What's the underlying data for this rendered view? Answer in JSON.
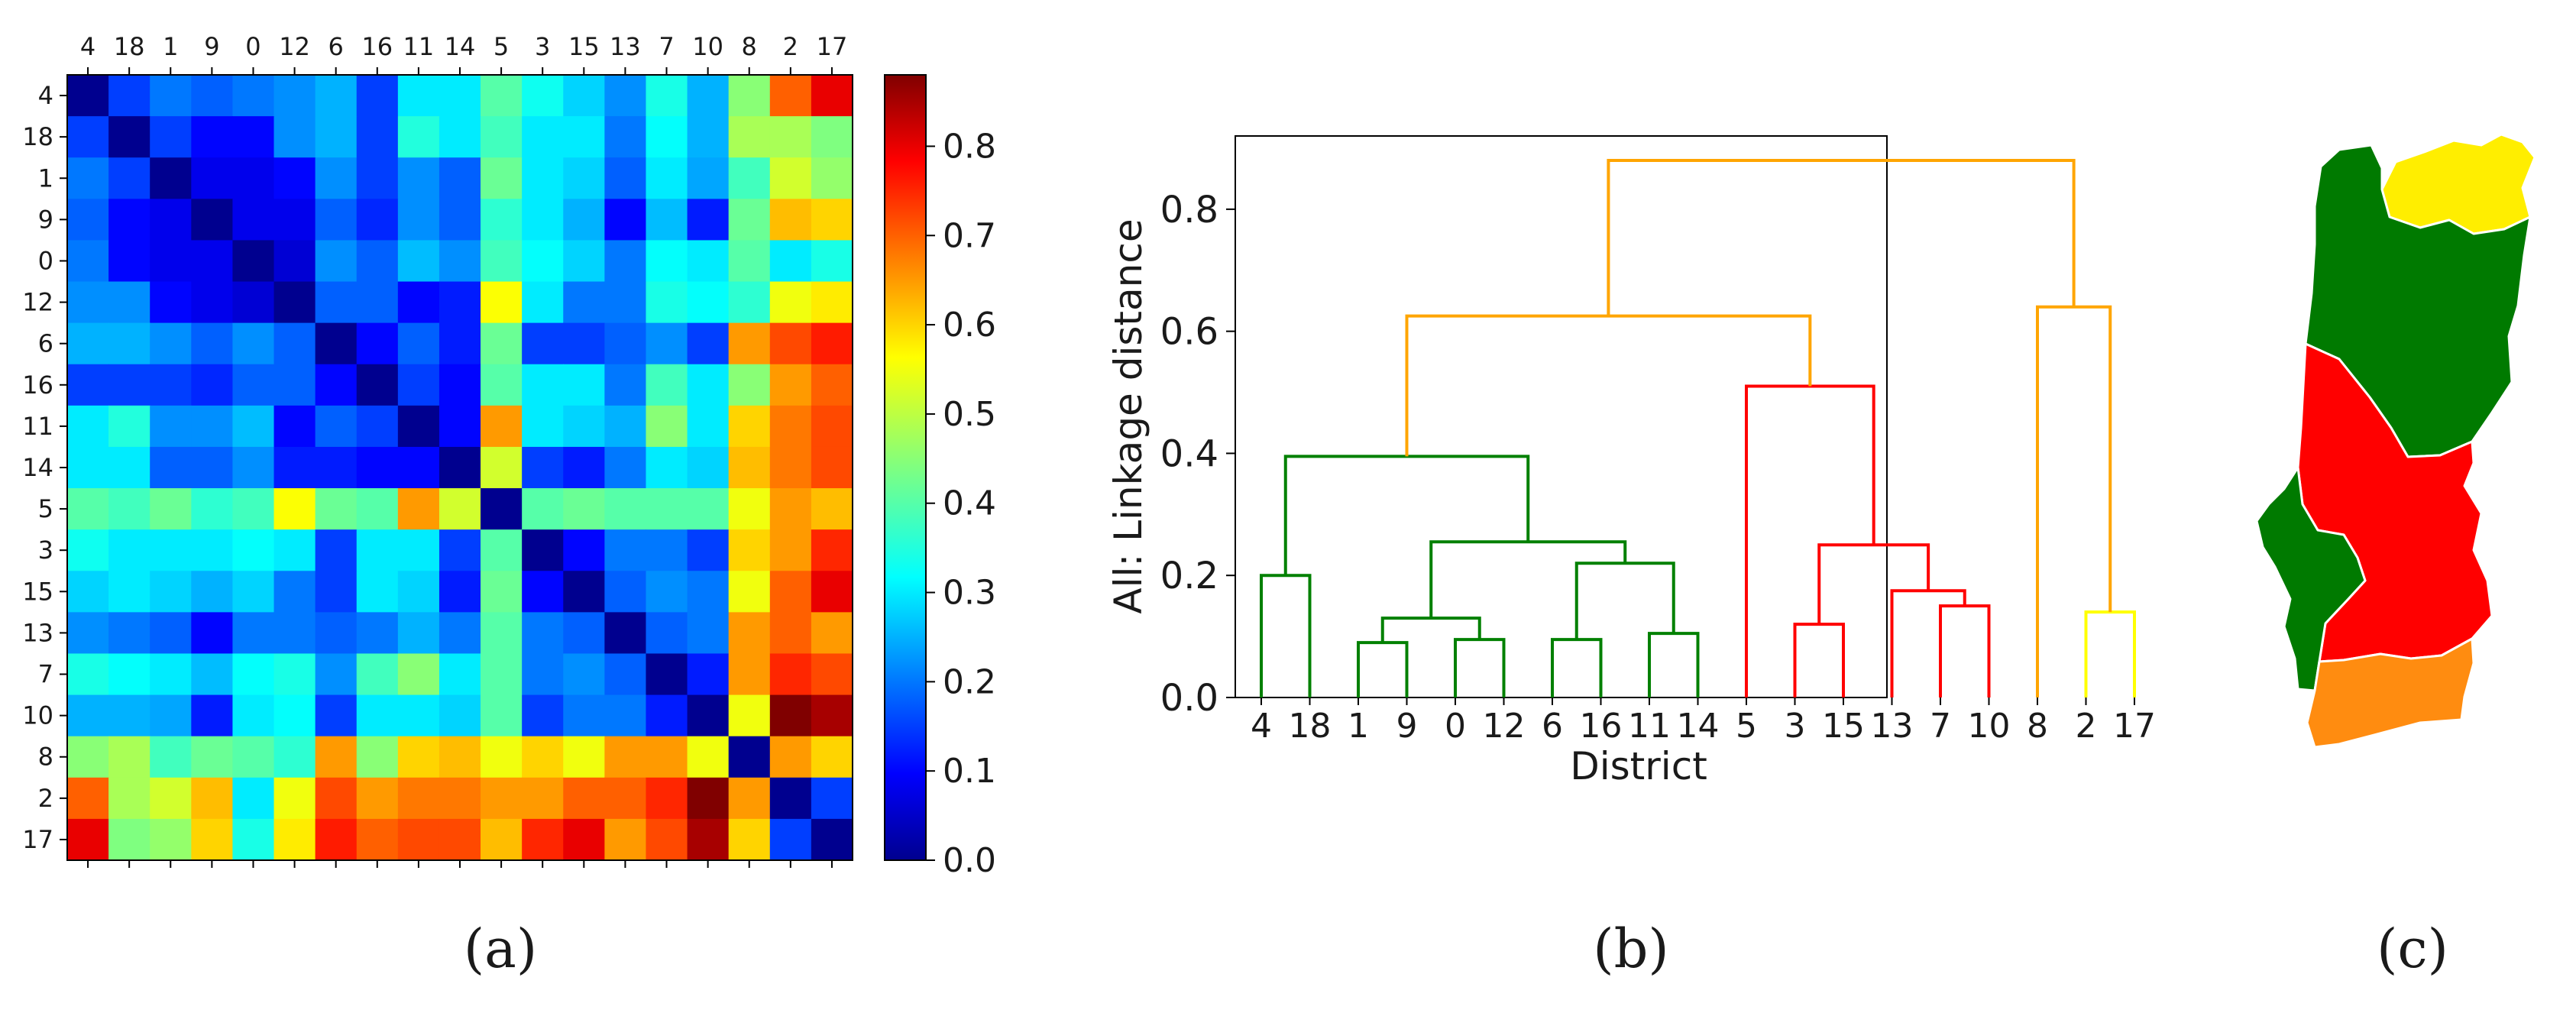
{
  "chart_data": [
    {
      "type": "heatmap",
      "panel_label": "(a)",
      "title": "",
      "row_labels": [
        "4",
        "18",
        "1",
        "9",
        "0",
        "12",
        "6",
        "16",
        "11",
        "14",
        "5",
        "3",
        "15",
        "13",
        "7",
        "10",
        "8",
        "2",
        "17"
      ],
      "col_labels": [
        "4",
        "18",
        "1",
        "9",
        "0",
        "12",
        "6",
        "16",
        "11",
        "14",
        "5",
        "3",
        "15",
        "13",
        "7",
        "10",
        "8",
        "2",
        "17"
      ],
      "values": [
        [
          0.0,
          0.15,
          0.2,
          0.18,
          0.2,
          0.22,
          0.25,
          0.15,
          0.3,
          0.3,
          0.4,
          0.33,
          0.28,
          0.22,
          0.34,
          0.25,
          0.45,
          0.7,
          0.8
        ],
        [
          0.15,
          0.0,
          0.15,
          0.1,
          0.1,
          0.22,
          0.25,
          0.15,
          0.35,
          0.3,
          0.38,
          0.3,
          0.3,
          0.2,
          0.32,
          0.25,
          0.48,
          0.48,
          0.44
        ],
        [
          0.2,
          0.15,
          0.0,
          0.08,
          0.08,
          0.1,
          0.22,
          0.15,
          0.22,
          0.18,
          0.42,
          0.3,
          0.28,
          0.18,
          0.3,
          0.24,
          0.38,
          0.52,
          0.46
        ],
        [
          0.18,
          0.1,
          0.08,
          0.0,
          0.08,
          0.08,
          0.18,
          0.13,
          0.22,
          0.18,
          0.36,
          0.3,
          0.25,
          0.1,
          0.26,
          0.12,
          0.42,
          0.62,
          0.6
        ],
        [
          0.2,
          0.1,
          0.08,
          0.08,
          0.0,
          0.06,
          0.22,
          0.18,
          0.26,
          0.22,
          0.38,
          0.32,
          0.28,
          0.2,
          0.32,
          0.3,
          0.4,
          0.3,
          0.34
        ],
        [
          0.22,
          0.22,
          0.1,
          0.08,
          0.06,
          0.0,
          0.18,
          0.18,
          0.1,
          0.12,
          0.56,
          0.3,
          0.2,
          0.2,
          0.34,
          0.32,
          0.36,
          0.55,
          0.58
        ],
        [
          0.25,
          0.25,
          0.22,
          0.18,
          0.22,
          0.18,
          0.0,
          0.1,
          0.18,
          0.12,
          0.42,
          0.15,
          0.15,
          0.18,
          0.22,
          0.15,
          0.65,
          0.72,
          0.76
        ],
        [
          0.15,
          0.15,
          0.15,
          0.13,
          0.18,
          0.18,
          0.1,
          0.0,
          0.15,
          0.1,
          0.4,
          0.3,
          0.3,
          0.2,
          0.38,
          0.3,
          0.45,
          0.65,
          0.7
        ],
        [
          0.3,
          0.35,
          0.22,
          0.22,
          0.26,
          0.1,
          0.18,
          0.15,
          0.0,
          0.1,
          0.65,
          0.3,
          0.28,
          0.25,
          0.45,
          0.3,
          0.6,
          0.68,
          0.72
        ],
        [
          0.3,
          0.3,
          0.18,
          0.18,
          0.22,
          0.12,
          0.12,
          0.1,
          0.1,
          0.0,
          0.52,
          0.15,
          0.12,
          0.2,
          0.3,
          0.28,
          0.62,
          0.68,
          0.72
        ],
        [
          0.4,
          0.38,
          0.42,
          0.36,
          0.38,
          0.56,
          0.42,
          0.4,
          0.65,
          0.52,
          0.0,
          0.4,
          0.42,
          0.4,
          0.4,
          0.4,
          0.55,
          0.65,
          0.62
        ],
        [
          0.33,
          0.3,
          0.3,
          0.3,
          0.32,
          0.3,
          0.15,
          0.3,
          0.3,
          0.15,
          0.4,
          0.0,
          0.1,
          0.2,
          0.2,
          0.15,
          0.6,
          0.65,
          0.75
        ],
        [
          0.28,
          0.3,
          0.28,
          0.25,
          0.28,
          0.2,
          0.15,
          0.3,
          0.28,
          0.12,
          0.42,
          0.1,
          0.0,
          0.18,
          0.22,
          0.2,
          0.55,
          0.7,
          0.8
        ],
        [
          0.22,
          0.2,
          0.18,
          0.1,
          0.2,
          0.2,
          0.18,
          0.2,
          0.25,
          0.2,
          0.4,
          0.2,
          0.18,
          0.0,
          0.18,
          0.2,
          0.65,
          0.7,
          0.65
        ],
        [
          0.34,
          0.32,
          0.3,
          0.26,
          0.32,
          0.34,
          0.22,
          0.38,
          0.45,
          0.3,
          0.4,
          0.2,
          0.22,
          0.18,
          0.0,
          0.12,
          0.65,
          0.75,
          0.72
        ],
        [
          0.25,
          0.25,
          0.24,
          0.12,
          0.3,
          0.32,
          0.15,
          0.3,
          0.3,
          0.28,
          0.4,
          0.15,
          0.2,
          0.2,
          0.12,
          0.0,
          0.55,
          0.88,
          0.85
        ],
        [
          0.45,
          0.48,
          0.38,
          0.42,
          0.4,
          0.36,
          0.65,
          0.45,
          0.6,
          0.62,
          0.55,
          0.6,
          0.55,
          0.65,
          0.65,
          0.55,
          0.0,
          0.65,
          0.6
        ],
        [
          0.7,
          0.48,
          0.52,
          0.62,
          0.3,
          0.55,
          0.72,
          0.65,
          0.68,
          0.68,
          0.65,
          0.65,
          0.7,
          0.7,
          0.75,
          0.88,
          0.65,
          0.0,
          0.15
        ],
        [
          0.8,
          0.44,
          0.46,
          0.6,
          0.34,
          0.58,
          0.76,
          0.7,
          0.72,
          0.72,
          0.62,
          0.75,
          0.8,
          0.65,
          0.72,
          0.85,
          0.6,
          0.15,
          0.0
        ]
      ],
      "colormap": "jet",
      "vmin": 0.0,
      "vmax": 0.88,
      "colorbar_ticks": [
        0.0,
        0.1,
        0.2,
        0.3,
        0.4,
        0.5,
        0.6,
        0.7,
        0.8
      ],
      "colorbar_tick_labels": [
        "0.0",
        "0.1",
        "0.2",
        "0.3",
        "0.4",
        "0.5",
        "0.6",
        "0.7",
        "0.8"
      ]
    },
    {
      "type": "dendrogram",
      "panel_label": "(b)",
      "title": "",
      "xlabel": "District",
      "ylabel": "All: Linkage distance",
      "ylim": [
        0.0,
        0.92
      ],
      "yticks": [
        0.0,
        0.2,
        0.4,
        0.6,
        0.8
      ],
      "ytick_labels": [
        "0.0",
        "0.2",
        "0.4",
        "0.6",
        "0.8"
      ],
      "leaf_order": [
        "4",
        "18",
        "1",
        "9",
        "0",
        "12",
        "6",
        "16",
        "11",
        "14",
        "5",
        "3",
        "15",
        "13",
        "7",
        "10",
        "8",
        "2",
        "17"
      ],
      "merges": [
        {
          "pos_left": 0,
          "pos_right": 1,
          "h_left": 0,
          "h_right": 0,
          "height": 0.2,
          "color": "#008000"
        },
        {
          "pos_left": 2,
          "pos_right": 3,
          "h_left": 0,
          "h_right": 0,
          "height": 0.09,
          "color": "#008000"
        },
        {
          "pos_left": 4,
          "pos_right": 5,
          "h_left": 0,
          "h_right": 0,
          "height": 0.095,
          "color": "#008000"
        },
        {
          "pos_left": 2.5,
          "pos_right": 4.5,
          "h_left": 0.09,
          "h_right": 0.095,
          "height": 0.13,
          "color": "#008000"
        },
        {
          "pos_left": 6,
          "pos_right": 7,
          "h_left": 0,
          "h_right": 0,
          "height": 0.095,
          "color": "#008000"
        },
        {
          "pos_left": 8,
          "pos_right": 9,
          "h_left": 0,
          "h_right": 0,
          "height": 0.105,
          "color": "#008000"
        },
        {
          "pos_left": 6.5,
          "pos_right": 8.5,
          "h_left": 0.095,
          "h_right": 0.105,
          "height": 0.22,
          "color": "#008000"
        },
        {
          "pos_left": 3.5,
          "pos_right": 7.5,
          "h_left": 0.13,
          "h_right": 0.22,
          "height": 0.255,
          "color": "#008000"
        },
        {
          "pos_left": 0.5,
          "pos_right": 5.5,
          "h_left": 0.2,
          "h_right": 0.255,
          "height": 0.395,
          "color": "#008000"
        },
        {
          "pos_left": 11,
          "pos_right": 12,
          "h_left": 0,
          "h_right": 0,
          "height": 0.12,
          "color": "#ff0000"
        },
        {
          "pos_left": 14,
          "pos_right": 15,
          "h_left": 0,
          "h_right": 0,
          "height": 0.15,
          "color": "#ff0000"
        },
        {
          "pos_left": 13,
          "pos_right": 14.5,
          "h_left": 0,
          "h_right": 0.15,
          "height": 0.175,
          "color": "#ff0000"
        },
        {
          "pos_left": 11.5,
          "pos_right": 13.75,
          "h_left": 0.12,
          "h_right": 0.175,
          "height": 0.25,
          "color": "#ff0000"
        },
        {
          "pos_left": 10,
          "pos_right": 12.625,
          "h_left": 0,
          "h_right": 0.25,
          "height": 0.51,
          "color": "#ff0000"
        },
        {
          "pos_left": 17,
          "pos_right": 18,
          "h_left": 0,
          "h_right": 0,
          "height": 0.14,
          "color": "#ffff00"
        },
        {
          "pos_left": 3,
          "pos_right": 11.3125,
          "h_left": 0.395,
          "h_right": 0.51,
          "height": 0.625,
          "color": "#ffa500"
        },
        {
          "pos_left": 16,
          "pos_right": 17.5,
          "h_left": 0,
          "h_right": 0.14,
          "height": 0.64,
          "color": "#ffa500"
        },
        {
          "pos_left": 7.15625,
          "pos_right": 16.75,
          "h_left": 0.625,
          "h_right": 0.64,
          "height": 0.88,
          "color": "#ffa500"
        }
      ]
    },
    {
      "type": "map",
      "panel_label": "(c)",
      "title": "",
      "region_colors": {
        "cluster_green": "#007a00",
        "cluster_yellow": "#ffee00",
        "cluster_red": "#ff0000",
        "cluster_orange": "#ff8c10"
      }
    }
  ],
  "captions": {
    "a": "(a)",
    "b": "(b)",
    "c": "(c)"
  }
}
